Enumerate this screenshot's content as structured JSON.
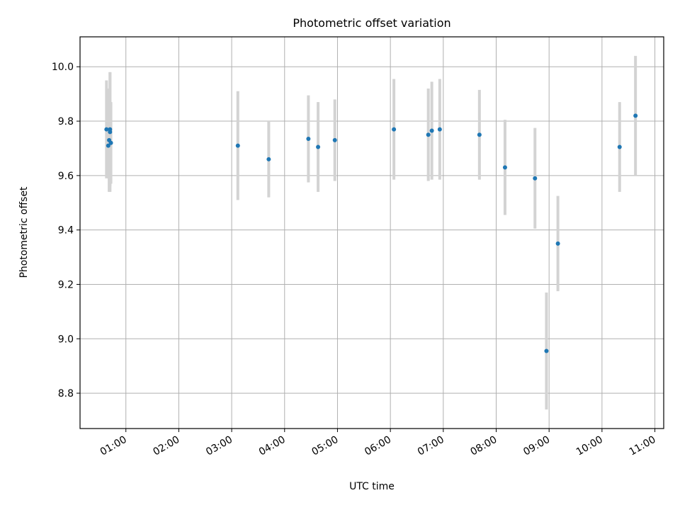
{
  "chart_data": {
    "type": "scatter",
    "title": "Photometric offset variation",
    "xlabel": "UTC time",
    "ylabel": "Photometric offset",
    "xlim": [
      "00:08",
      "11:10"
    ],
    "ylim": [
      8.67,
      10.11
    ],
    "grid": true,
    "x_ticks": [
      "01:00",
      "02:00",
      "03:00",
      "04:00",
      "05:00",
      "06:00",
      "07:00",
      "08:00",
      "09:00",
      "10:00",
      "11:00"
    ],
    "y_ticks": [
      8.8,
      9.0,
      9.2,
      9.4,
      9.6,
      9.8,
      10.0
    ],
    "y_tick_labels": [
      "8.8",
      "9.0",
      "9.2",
      "9.4",
      "9.6",
      "9.8",
      "10.0"
    ],
    "colors": {
      "marker": "#1f77b4",
      "errorbar": "#d3d3d3"
    },
    "points": [
      {
        "t": "00:38",
        "y": 9.77,
        "err": 0.18
      },
      {
        "t": "00:40",
        "y": 9.71,
        "err": 0.12
      },
      {
        "t": "00:41",
        "y": 9.73,
        "err": 0.19
      },
      {
        "t": "00:42",
        "y": 9.77,
        "err": 0.21
      },
      {
        "t": "00:42",
        "y": 9.76,
        "err": 0.22
      },
      {
        "t": "00:43",
        "y": 9.72,
        "err": 0.15
      },
      {
        "t": "03:07",
        "y": 9.71,
        "err": 0.2
      },
      {
        "t": "03:42",
        "y": 9.66,
        "err": 0.14
      },
      {
        "t": "04:27",
        "y": 9.735,
        "err": 0.16
      },
      {
        "t": "04:38",
        "y": 9.705,
        "err": 0.165
      },
      {
        "t": "04:57",
        "y": 9.73,
        "err": 0.15
      },
      {
        "t": "06:04",
        "y": 9.77,
        "err": 0.185
      },
      {
        "t": "06:43",
        "y": 9.75,
        "err": 0.17
      },
      {
        "t": "06:47",
        "y": 9.765,
        "err": 0.18
      },
      {
        "t": "06:56",
        "y": 9.77,
        "err": 0.185
      },
      {
        "t": "07:41",
        "y": 9.75,
        "err": 0.165
      },
      {
        "t": "08:10",
        "y": 9.63,
        "err": 0.175
      },
      {
        "t": "08:44",
        "y": 9.59,
        "err": 0.185
      },
      {
        "t": "08:57",
        "y": 8.955,
        "err": 0.215
      },
      {
        "t": "09:10",
        "y": 9.35,
        "err": 0.175
      },
      {
        "t": "10:20",
        "y": 9.705,
        "err": 0.165
      },
      {
        "t": "10:38",
        "y": 9.82,
        "err": 0.22
      }
    ]
  }
}
